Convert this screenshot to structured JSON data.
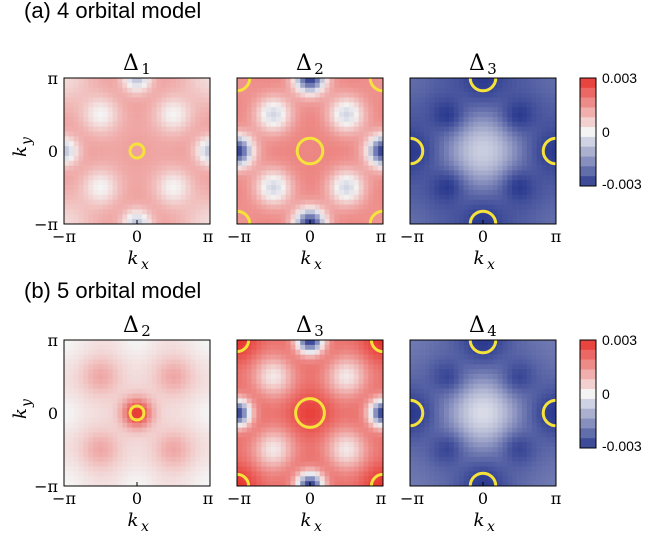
{
  "chart_data": [
    {
      "type": "heatmap",
      "panel_label": "(a) 4 orbital model",
      "colorbar": {
        "ticks": [
          "0.003",
          "0",
          "-0.003"
        ],
        "range": [
          -0.003,
          0.003
        ],
        "colors": {
          "low": "#2b3a8f",
          "mid": "#f4f4f4",
          "high": "#e8342e"
        }
      },
      "xlabel": "k",
      "xlabel_sub": "x",
      "ylabel": "k",
      "ylabel_sub": "y",
      "xticks": [
        "−π",
        "0",
        "π"
      ],
      "yticks": [
        "π",
        "0",
        "−π"
      ],
      "maps": [
        {
          "title": "Δ",
          "title_sub": "1",
          "base": 0.0012,
          "center": 0.0013,
          "centerR": 0.55,
          "edgeMid": 0.0015,
          "corner": 0.0004,
          "edgeDots": -0.0008,
          "arms": 0.0,
          "circles": [
            {
              "cx": 0,
              "cy": 0,
              "r": 0.3
            }
          ]
        },
        {
          "title": "Δ",
          "title_sub": "2",
          "base": 0.0018,
          "center": 0.0017,
          "centerR": 0.7,
          "edgeMid": 0.0014,
          "corner": 0.0015,
          "edgeDots": -0.003,
          "arms": -0.0005,
          "circles": [
            {
              "cx": 0,
              "cy": 0,
              "r": 0.55
            },
            {
              "cx": 3.14159,
              "cy": 3.14159,
              "r": 0.55
            },
            {
              "cx": -3.14159,
              "cy": 3.14159,
              "r": 0.55
            },
            {
              "cx": 3.14159,
              "cy": -3.14159,
              "r": 0.55
            },
            {
              "cx": -3.14159,
              "cy": -3.14159,
              "r": 0.55
            }
          ]
        },
        {
          "title": "Δ",
          "title_sub": "3",
          "base": -0.0025,
          "center": -0.0006,
          "centerR": 1.3,
          "edgeMid": -0.0028,
          "corner": -0.0022,
          "edgeDots": -0.003,
          "arms": -0.003,
          "circles": [
            {
              "cx": 0,
              "cy": 3.14159,
              "r": 0.55
            },
            {
              "cx": 0,
              "cy": -3.14159,
              "r": 0.55
            },
            {
              "cx": 3.14159,
              "cy": 0,
              "r": 0.55
            },
            {
              "cx": -3.14159,
              "cy": 0,
              "r": 0.55
            }
          ]
        }
      ]
    },
    {
      "type": "heatmap",
      "panel_label": "(b)  5 orbital model",
      "colorbar": {
        "ticks": [
          "0.003",
          "0",
          "-0.003"
        ],
        "range": [
          -0.003,
          0.003
        ],
        "colors": {
          "low": "#2b3a8f",
          "mid": "#f4f4f4",
          "high": "#e8342e"
        }
      },
      "xlabel": "k",
      "xlabel_sub": "x",
      "ylabel": "k",
      "ylabel_sub": "y",
      "xticks": [
        "−π",
        "0",
        "π"
      ],
      "yticks": [
        "π",
        "0",
        "−π"
      ],
      "maps": [
        {
          "title": "Δ",
          "title_sub": "2",
          "base": 0.0004,
          "center": 0.003,
          "centerR": 0.45,
          "edgeMid": 0.0002,
          "corner": 0.0,
          "edgeDots": 0.0,
          "arms": 0.0012,
          "circles": [
            {
              "cx": 0,
              "cy": 0,
              "r": 0.3
            }
          ]
        },
        {
          "title": "Δ",
          "title_sub": "3",
          "base": 0.0016,
          "center": 0.0028,
          "centerR": 0.85,
          "edgeMid": 0.0028,
          "corner": 0.003,
          "edgeDots": -0.003,
          "arms": 0.0002,
          "circles": [
            {
              "cx": 0,
              "cy": 0,
              "r": 0.62
            },
            {
              "cx": 3.14159,
              "cy": 3.14159,
              "r": 0.5
            },
            {
              "cx": -3.14159,
              "cy": 3.14159,
              "r": 0.5
            },
            {
              "cx": 3.14159,
              "cy": -3.14159,
              "r": 0.5
            },
            {
              "cx": -3.14159,
              "cy": -3.14159,
              "r": 0.5
            }
          ]
        },
        {
          "title": "Δ",
          "title_sub": "4",
          "base": -0.0022,
          "center": -0.0004,
          "centerR": 1.2,
          "edgeMid": -0.0028,
          "corner": -0.002,
          "edgeDots": -0.003,
          "arms": -0.0028,
          "circles": [
            {
              "cx": 0,
              "cy": 3.14159,
              "r": 0.55
            },
            {
              "cx": 0,
              "cy": -3.14159,
              "r": 0.55
            },
            {
              "cx": 3.14159,
              "cy": 0,
              "r": 0.55
            },
            {
              "cx": -3.14159,
              "cy": 0,
              "r": 0.55
            }
          ]
        }
      ]
    }
  ]
}
